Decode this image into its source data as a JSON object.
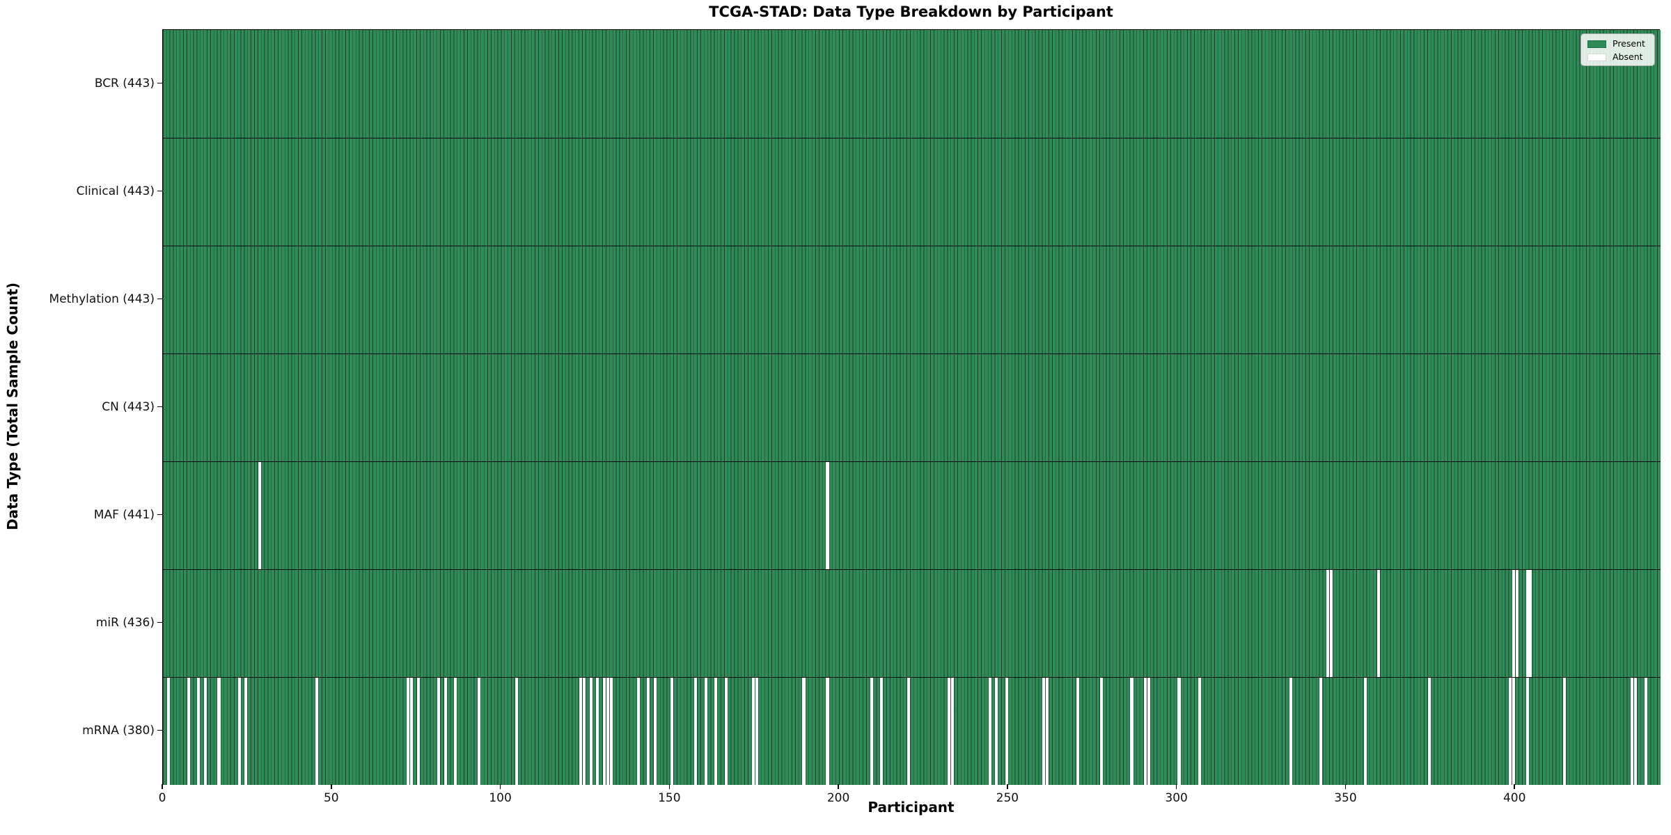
{
  "title": "TCGA-STAD: Data Type Breakdown by Participant",
  "xlabel": "Participant",
  "ylabel": "Data Type (Total Sample Count)",
  "legend": {
    "present_label": "Present",
    "absent_label": "Absent"
  },
  "colors": {
    "present": "#2e8b57",
    "absent": "#ffffff",
    "bar_edge": "rgba(0,0,0,0.55)"
  },
  "chart_data": {
    "type": "heatmap",
    "x_axis": {
      "label": "Participant",
      "ticks": [
        0,
        50,
        100,
        150,
        200,
        250,
        300,
        350,
        400
      ],
      "range": [
        0,
        443
      ]
    },
    "y_axis": {
      "label": "Data Type (Total Sample Count)"
    },
    "n_participants": 443,
    "legend_position": "upper right",
    "rows": [
      {
        "label": "BCR (443)",
        "data_type": "BCR",
        "total": 443,
        "absent_participants": []
      },
      {
        "label": "Clinical (443)",
        "data_type": "Clinical",
        "total": 443,
        "absent_participants": []
      },
      {
        "label": "Methylation (443)",
        "data_type": "Methylation",
        "total": 443,
        "absent_participants": []
      },
      {
        "label": "CN (443)",
        "data_type": "CN",
        "total": 443,
        "absent_participants": []
      },
      {
        "label": "MAF (441)",
        "data_type": "MAF",
        "total": 441,
        "absent_participants": [
          28,
          196
        ]
      },
      {
        "label": "miR (436)",
        "data_type": "miR",
        "total": 436,
        "absent_participants": [
          344,
          345,
          359,
          399,
          400,
          403,
          404
        ]
      },
      {
        "label": "mRNA (380)",
        "data_type": "mRNA",
        "total": 380,
        "absent_participants": [
          1,
          7,
          10,
          12,
          16,
          22,
          24,
          45,
          72,
          73,
          75,
          81,
          83,
          86,
          93,
          104,
          123,
          124,
          126,
          128,
          130,
          131,
          132,
          140,
          143,
          145,
          150,
          157,
          160,
          163,
          166,
          174,
          175,
          189,
          196,
          209,
          212,
          220,
          232,
          233,
          244,
          246,
          249,
          260,
          261,
          270,
          277,
          286,
          290,
          291,
          300,
          306,
          333,
          342,
          355,
          374,
          398,
          399,
          403,
          414,
          434,
          435,
          438
        ]
      }
    ]
  }
}
